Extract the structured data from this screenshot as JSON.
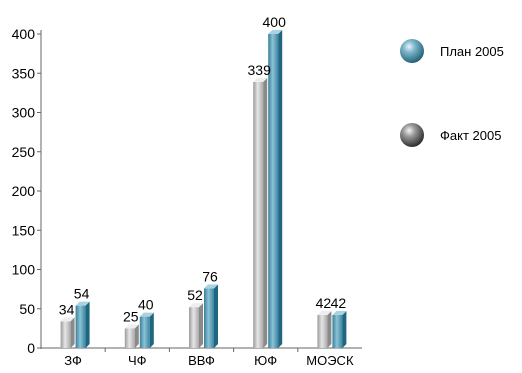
{
  "chart_data": {
    "type": "bar",
    "categories": [
      "ЗФ",
      "ЧФ",
      "ВВФ",
      "ЮФ",
      "МОЭСК"
    ],
    "series": [
      {
        "name": "Факт 2005",
        "values": [
          34,
          25,
          52,
          339,
          42
        ],
        "color": "#b8b8b8"
      },
      {
        "name": "План 2005",
        "values": [
          54,
          40,
          76,
          400,
          42
        ],
        "color": "#4a8fa8"
      }
    ],
    "ylim": [
      0,
      400
    ],
    "yticks": [
      0,
      50,
      100,
      150,
      200,
      250,
      300,
      350,
      400
    ],
    "style": "3d-columns",
    "grid": false,
    "legend_position": "right",
    "legend_order": [
      "План 2005",
      "Факт 2005"
    ]
  }
}
